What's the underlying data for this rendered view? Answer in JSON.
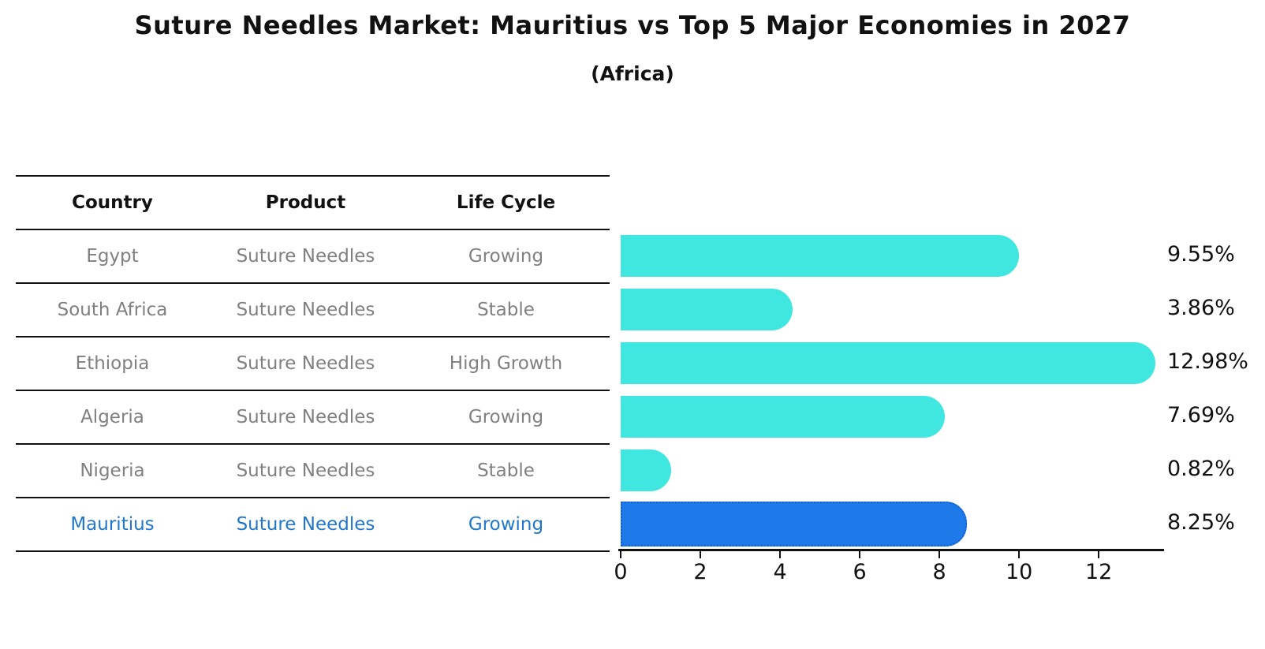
{
  "title": "Suture Needles Market: Mauritius vs Top 5 Major Economies in 2027",
  "subtitle": "(Africa)",
  "table": {
    "headers": [
      "Country",
      "Product",
      "Life Cycle"
    ],
    "rows": [
      {
        "country": "Egypt",
        "product": "Suture Needles",
        "life_cycle": "Growing",
        "highlight": false
      },
      {
        "country": "South Africa",
        "product": "Suture Needles",
        "life_cycle": "Stable",
        "highlight": false
      },
      {
        "country": "Ethiopia",
        "product": "Suture Needles",
        "life_cycle": "High Growth",
        "highlight": false
      },
      {
        "country": "Algeria",
        "product": "Suture Needles",
        "life_cycle": "Growing",
        "highlight": false
      },
      {
        "country": "Nigeria",
        "product": "Suture Needles",
        "life_cycle": "Stable",
        "highlight": false
      },
      {
        "country": "Mauritius",
        "product": "Suture Needles",
        "life_cycle": "Growing",
        "highlight": true
      }
    ]
  },
  "chart_data": {
    "type": "bar",
    "orientation": "horizontal",
    "title": "Suture Needles Market: Mauritius vs Top 5 Major Economies in 2027",
    "subtitle": "(Africa)",
    "categories": [
      "Egypt",
      "South Africa",
      "Ethiopia",
      "Algeria",
      "Nigeria",
      "Mauritius"
    ],
    "values": [
      9.55,
      3.86,
      12.98,
      7.69,
      0.82,
      8.25
    ],
    "value_labels": [
      "9.55%",
      "3.86%",
      "12.98%",
      "7.69%",
      "0.82%",
      "8.25%"
    ],
    "unit": "%",
    "xlim": [
      0,
      13.6
    ],
    "xticks": [
      0,
      2,
      4,
      6,
      8,
      10,
      12
    ],
    "grid": false,
    "legend": null,
    "highlight_category": "Mauritius",
    "colors": {
      "default_bar": "#40e6e0",
      "highlight_bar": "#1e7ae8",
      "highlight_border": "#135fd6",
      "highlight_text": "#2277cc",
      "table_text": "#808080",
      "axis": "#111111"
    }
  }
}
